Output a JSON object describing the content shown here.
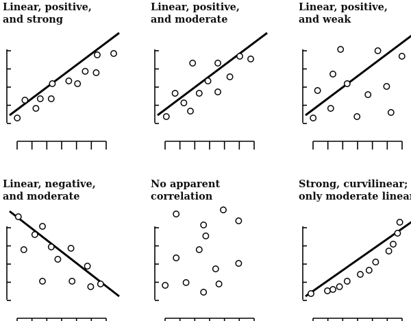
{
  "chart_data": [
    {
      "type": "scatter",
      "title": [
        "Linear, positive,",
        "and strong"
      ],
      "fit": "linear",
      "fit_line": {
        "x": [
          0.0,
          10.0
        ],
        "y": [
          0.5,
          6.5
        ]
      },
      "points": {
        "x": [
          0.7,
          1.4,
          2.4,
          2.8,
          3.8,
          3.9,
          5.4,
          6.2,
          6.9,
          7.9,
          8.0,
          9.5
        ],
        "y": [
          0.3,
          1.6,
          1.0,
          1.7,
          1.7,
          2.8,
          3.0,
          2.8,
          3.7,
          3.6,
          4.9,
          5.0
        ]
      }
    },
    {
      "type": "scatter",
      "title": [
        "Linear, positive,",
        "and moderate"
      ],
      "fit": "linear",
      "fit_line": {
        "x": [
          0.0,
          10.0
        ],
        "y": [
          0.5,
          6.5
        ]
      },
      "points": {
        "x": [
          0.8,
          1.6,
          2.4,
          3.0,
          3.2,
          3.8,
          4.6,
          5.5,
          5.5,
          6.6,
          7.5,
          8.5
        ],
        "y": [
          0.4,
          2.1,
          1.4,
          0.8,
          4.3,
          2.1,
          3.0,
          2.2,
          4.3,
          3.3,
          4.8,
          4.6
        ]
      }
    },
    {
      "type": "scatter",
      "title": [
        "Linear, positive,",
        "and weak"
      ],
      "fit": "linear",
      "fit_line": {
        "x": [
          0.0,
          10.0
        ],
        "y": [
          0.5,
          6.5
        ]
      },
      "points": {
        "x": [
          0.7,
          1.1,
          2.3,
          2.5,
          3.2,
          3.8,
          4.7,
          5.7,
          6.6,
          7.4,
          7.8,
          8.8
        ],
        "y": [
          0.3,
          2.3,
          1.0,
          3.5,
          5.3,
          2.8,
          0.4,
          2.0,
          5.2,
          2.6,
          0.7,
          4.8
        ]
      }
    },
    {
      "type": "scatter",
      "title": [
        "Linear, negative,",
        "and moderate"
      ],
      "fit": "linear",
      "fit_line": {
        "x": [
          0.0,
          10.0
        ],
        "y": [
          6.4,
          0.2
        ]
      },
      "points": {
        "x": [
          0.8,
          1.3,
          2.3,
          3.0,
          3.0,
          3.8,
          4.4,
          5.6,
          5.7,
          7.1,
          7.4,
          8.3
        ],
        "y": [
          6.0,
          3.6,
          4.7,
          1.3,
          5.3,
          3.8,
          2.9,
          3.7,
          1.3,
          2.4,
          0.9,
          1.1
        ]
      }
    },
    {
      "type": "scatter",
      "title": [
        "No apparent",
        "correlation"
      ],
      "fit": "none",
      "points": {
        "x": [
          0.7,
          1.7,
          1.7,
          2.6,
          3.8,
          4.2,
          4.2,
          4.4,
          5.3,
          5.6,
          6.0,
          7.4,
          7.4
        ],
        "y": [
          1.0,
          3.0,
          6.2,
          1.2,
          3.6,
          0.5,
          5.4,
          4.6,
          2.2,
          1.1,
          6.5,
          2.6,
          5.7
        ]
      }
    },
    {
      "type": "scatter",
      "title": [
        "Strong, curvilinear;",
        "only moderate linear"
      ],
      "fit": "linear",
      "fit_line": {
        "x": [
          0.0,
          10.0
        ],
        "y": [
          0.2,
          5.8
        ]
      },
      "points": {
        "x": [
          0.5,
          2.0,
          2.5,
          3.1,
          3.8,
          5.0,
          5.8,
          6.4,
          7.6,
          8.0,
          8.4,
          8.6
        ],
        "y": [
          0.4,
          0.6,
          0.7,
          0.9,
          1.3,
          1.8,
          2.1,
          2.7,
          3.5,
          4.0,
          4.8,
          5.6
        ]
      }
    }
  ]
}
